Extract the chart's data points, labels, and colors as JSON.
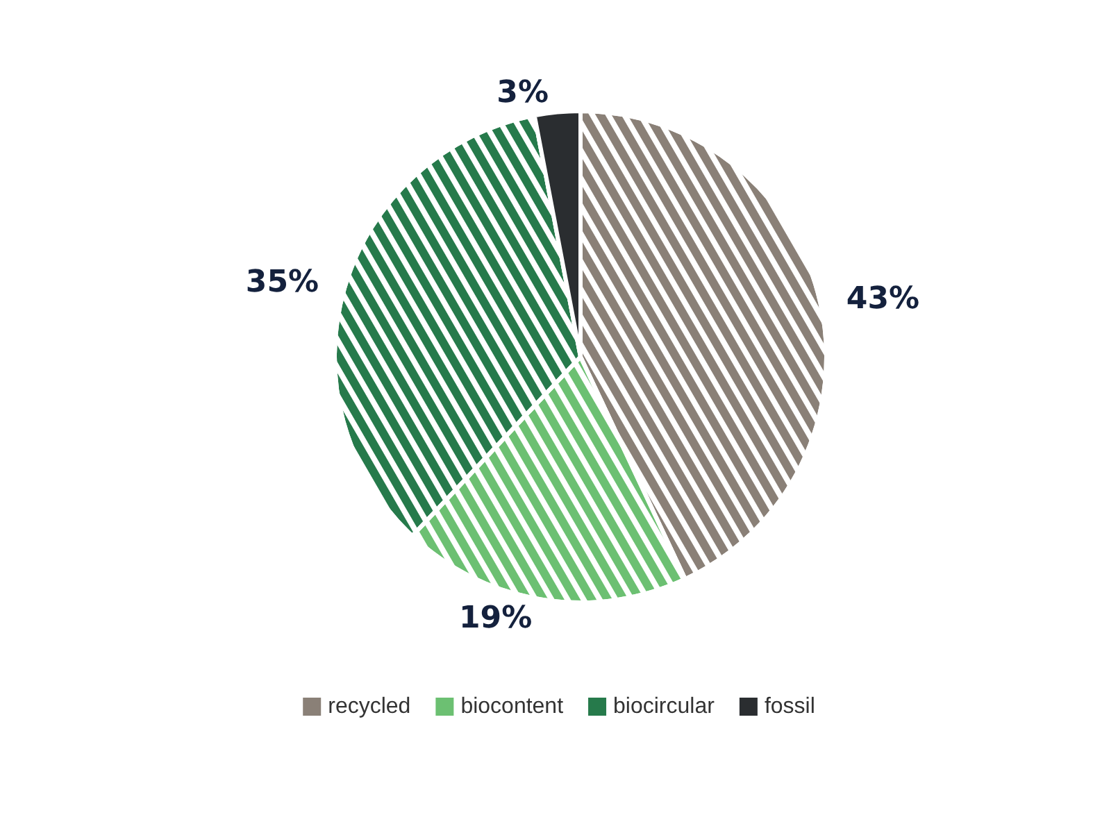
{
  "chart_data": {
    "type": "pie",
    "categories": [
      "recycled",
      "biocontent",
      "biocircular",
      "fossil"
    ],
    "values": [
      43,
      19,
      35,
      3
    ],
    "colors": [
      "#8a8077",
      "#6cc072",
      "#267a4b",
      "#2a2d30"
    ],
    "value_labels": [
      "43%",
      "19%",
      "35%",
      "3%"
    ],
    "legend": "bottom"
  }
}
